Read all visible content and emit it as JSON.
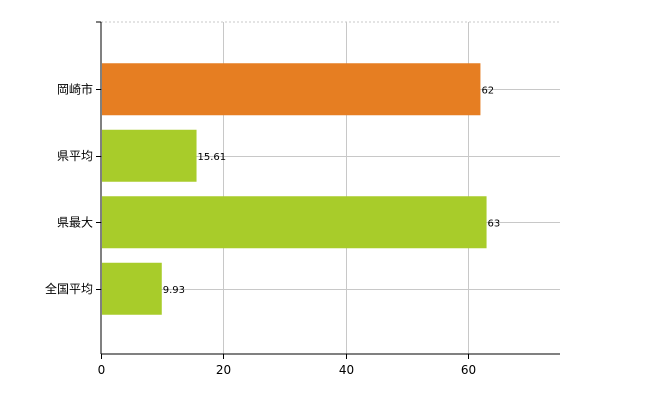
{
  "chart_data": {
    "type": "bar",
    "orientation": "horizontal",
    "categories": [
      "岡崎市",
      "県平均",
      "県最大",
      "全国平均"
    ],
    "values": [
      62,
      15.61,
      63,
      9.93
    ],
    "data_labels": [
      "62",
      "15.61",
      "63",
      "9.93"
    ],
    "bar_colors": [
      "#e67e22",
      "#a8cc2a",
      "#a8cc2a",
      "#a8cc2a"
    ],
    "xlim": [
      0,
      75
    ],
    "x_ticks": [
      0,
      20,
      40,
      60
    ],
    "title": "",
    "xlabel": "",
    "ylabel": "",
    "grid": true,
    "legend": "none"
  }
}
